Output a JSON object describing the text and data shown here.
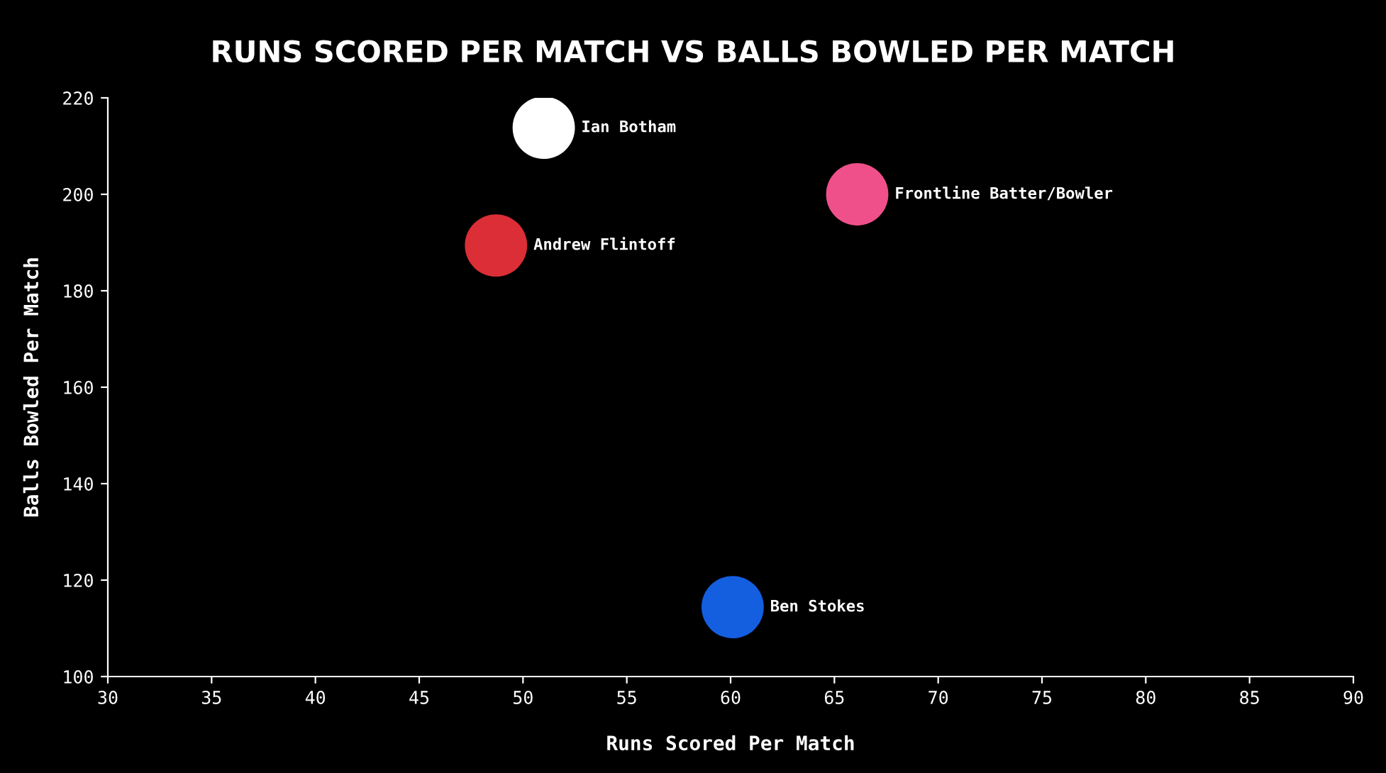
{
  "chart_data": {
    "type": "scatter",
    "title": "RUNS SCORED PER MATCH VS BALLS BOWLED PER MATCH",
    "xlabel": "Runs Scored Per Match",
    "ylabel": "Balls Bowled Per Match",
    "series": [
      {
        "name": "Ian Botham",
        "color": "#ffffff",
        "x": [
          51.0
        ],
        "values": [
          213.8
        ]
      },
      {
        "name": "Frontline Batter/Bowler",
        "color": "#f0508a",
        "x": [
          66.1
        ],
        "values": [
          200
        ]
      },
      {
        "name": "Andrew Flintoff",
        "color": "#dc2e36",
        "x": [
          48.7
        ],
        "values": [
          189.4
        ]
      },
      {
        "name": "Ben Stokes",
        "color": "#145ee0",
        "x": [
          60.1
        ],
        "values": [
          114.4
        ]
      }
    ],
    "xlim": [
      30,
      90
    ],
    "xticks": [
      30,
      35,
      40,
      45,
      50,
      55,
      60,
      65,
      70,
      75,
      80,
      85,
      90
    ],
    "ylim": [
      100,
      220
    ],
    "yticks": [
      100,
      120,
      140,
      160,
      180,
      200,
      220
    ],
    "marker": "circle",
    "grid": false,
    "legend": false
  }
}
